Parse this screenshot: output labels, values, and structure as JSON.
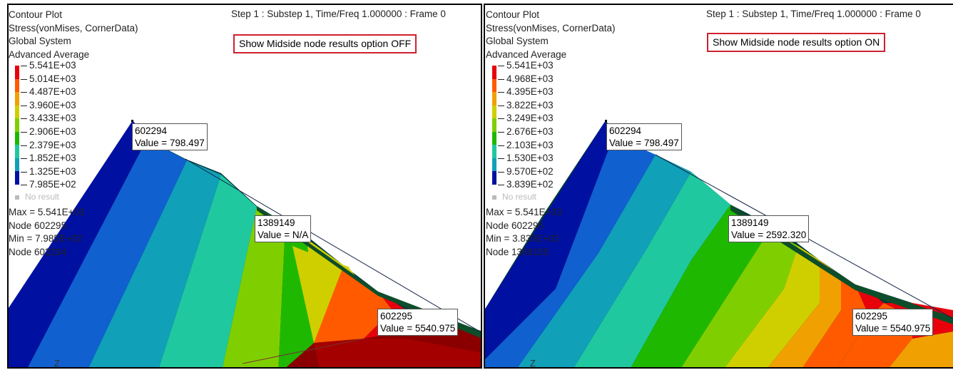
{
  "left": {
    "header": [
      "Contour Plot",
      "Stress(vonMises, CornerData)",
      "Global System",
      "Advanced Average"
    ],
    "step": "Step 1 : Substep 1, Time/Freq 1.000000 : Frame 0",
    "note": "Show Midside node results option OFF",
    "legend": [
      "5.541E+03",
      "5.014E+03",
      "4.487E+03",
      "3.960E+03",
      "3.433E+03",
      "2.906E+03",
      "2.379E+03",
      "1.852E+03",
      "1.325E+03",
      "7.985E+02"
    ],
    "no_result": "No result",
    "stats": [
      "Max = 5.541E+03",
      "Node 602295",
      "Min = 7.985E+02",
      "Node 602294"
    ],
    "tags": [
      {
        "id": "602294",
        "value": "Value = 798.497"
      },
      {
        "id": "1389149",
        "value": "Value = N/A"
      },
      {
        "id": "602295",
        "value": "Value = 5540.975"
      }
    ],
    "axis": "Z"
  },
  "right": {
    "header": [
      "Contour Plot",
      "Stress(vonMises, CornerData)",
      "Global System",
      "Advanced Average"
    ],
    "step": "Step 1 : Substep 1, Time/Freq 1.000000 : Frame 0",
    "note": "Show Midside node results option ON",
    "legend": [
      "5.541E+03",
      "4.968E+03",
      "4.395E+03",
      "3.822E+03",
      "3.249E+03",
      "2.676E+03",
      "2.103E+03",
      "1.530E+03",
      "9.570E+02",
      "3.839E+02"
    ],
    "no_result": "No result",
    "stats": [
      "Max = 5.541E+03",
      "Node 602295",
      "Min = 3.839E+02",
      "Node 1389155"
    ],
    "tags": [
      {
        "id": "602294",
        "value": "Value = 798.497"
      },
      {
        "id": "1389149",
        "value": "Value = 2592.320"
      },
      {
        "id": "602295",
        "value": "Value = 5540.975"
      }
    ],
    "axis": "Z"
  },
  "colors": {
    "band_1": "#e8000b",
    "band_2": "#ff5a00",
    "band_3": "#f0a000",
    "band_4": "#cfcf00",
    "band_5": "#7fcf00",
    "band_6": "#1fb800",
    "band_7": "#20c8a0",
    "band_8": "#10a0b8",
    "band_9": "#1060d0",
    "band_10": "#0010a0",
    "highlight": "#d0202e"
  }
}
